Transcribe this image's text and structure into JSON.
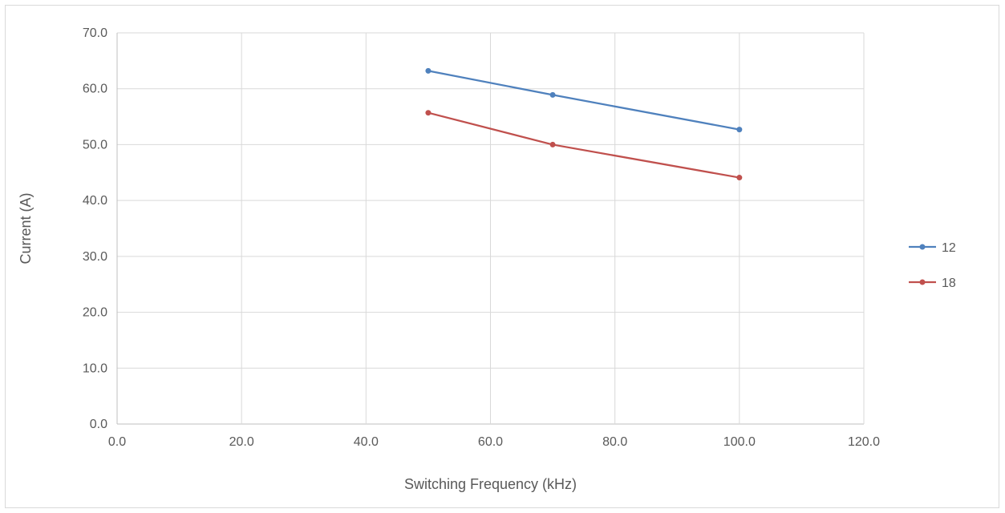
{
  "chart_data": {
    "type": "scatter",
    "title": "",
    "xlabel": "Switching Frequency (kHz)",
    "ylabel": "Current (A)",
    "xlim": [
      0,
      120
    ],
    "ylim": [
      0,
      70
    ],
    "x_ticks": [
      "0.0",
      "20.0",
      "40.0",
      "60.0",
      "80.0",
      "100.0",
      "120.0"
    ],
    "y_ticks": [
      "0.0",
      "10.0",
      "20.0",
      "30.0",
      "40.0",
      "50.0",
      "60.0",
      "70.0"
    ],
    "grid": true,
    "legend_position": "right",
    "series": [
      {
        "name": "12",
        "color": "#4f81bd",
        "x": [
          50,
          70,
          100
        ],
        "y": [
          63.2,
          58.9,
          52.7
        ]
      },
      {
        "name": "18",
        "color": "#c0504d",
        "x": [
          50,
          70,
          100
        ],
        "y": [
          55.7,
          50.0,
          44.1
        ]
      }
    ]
  }
}
